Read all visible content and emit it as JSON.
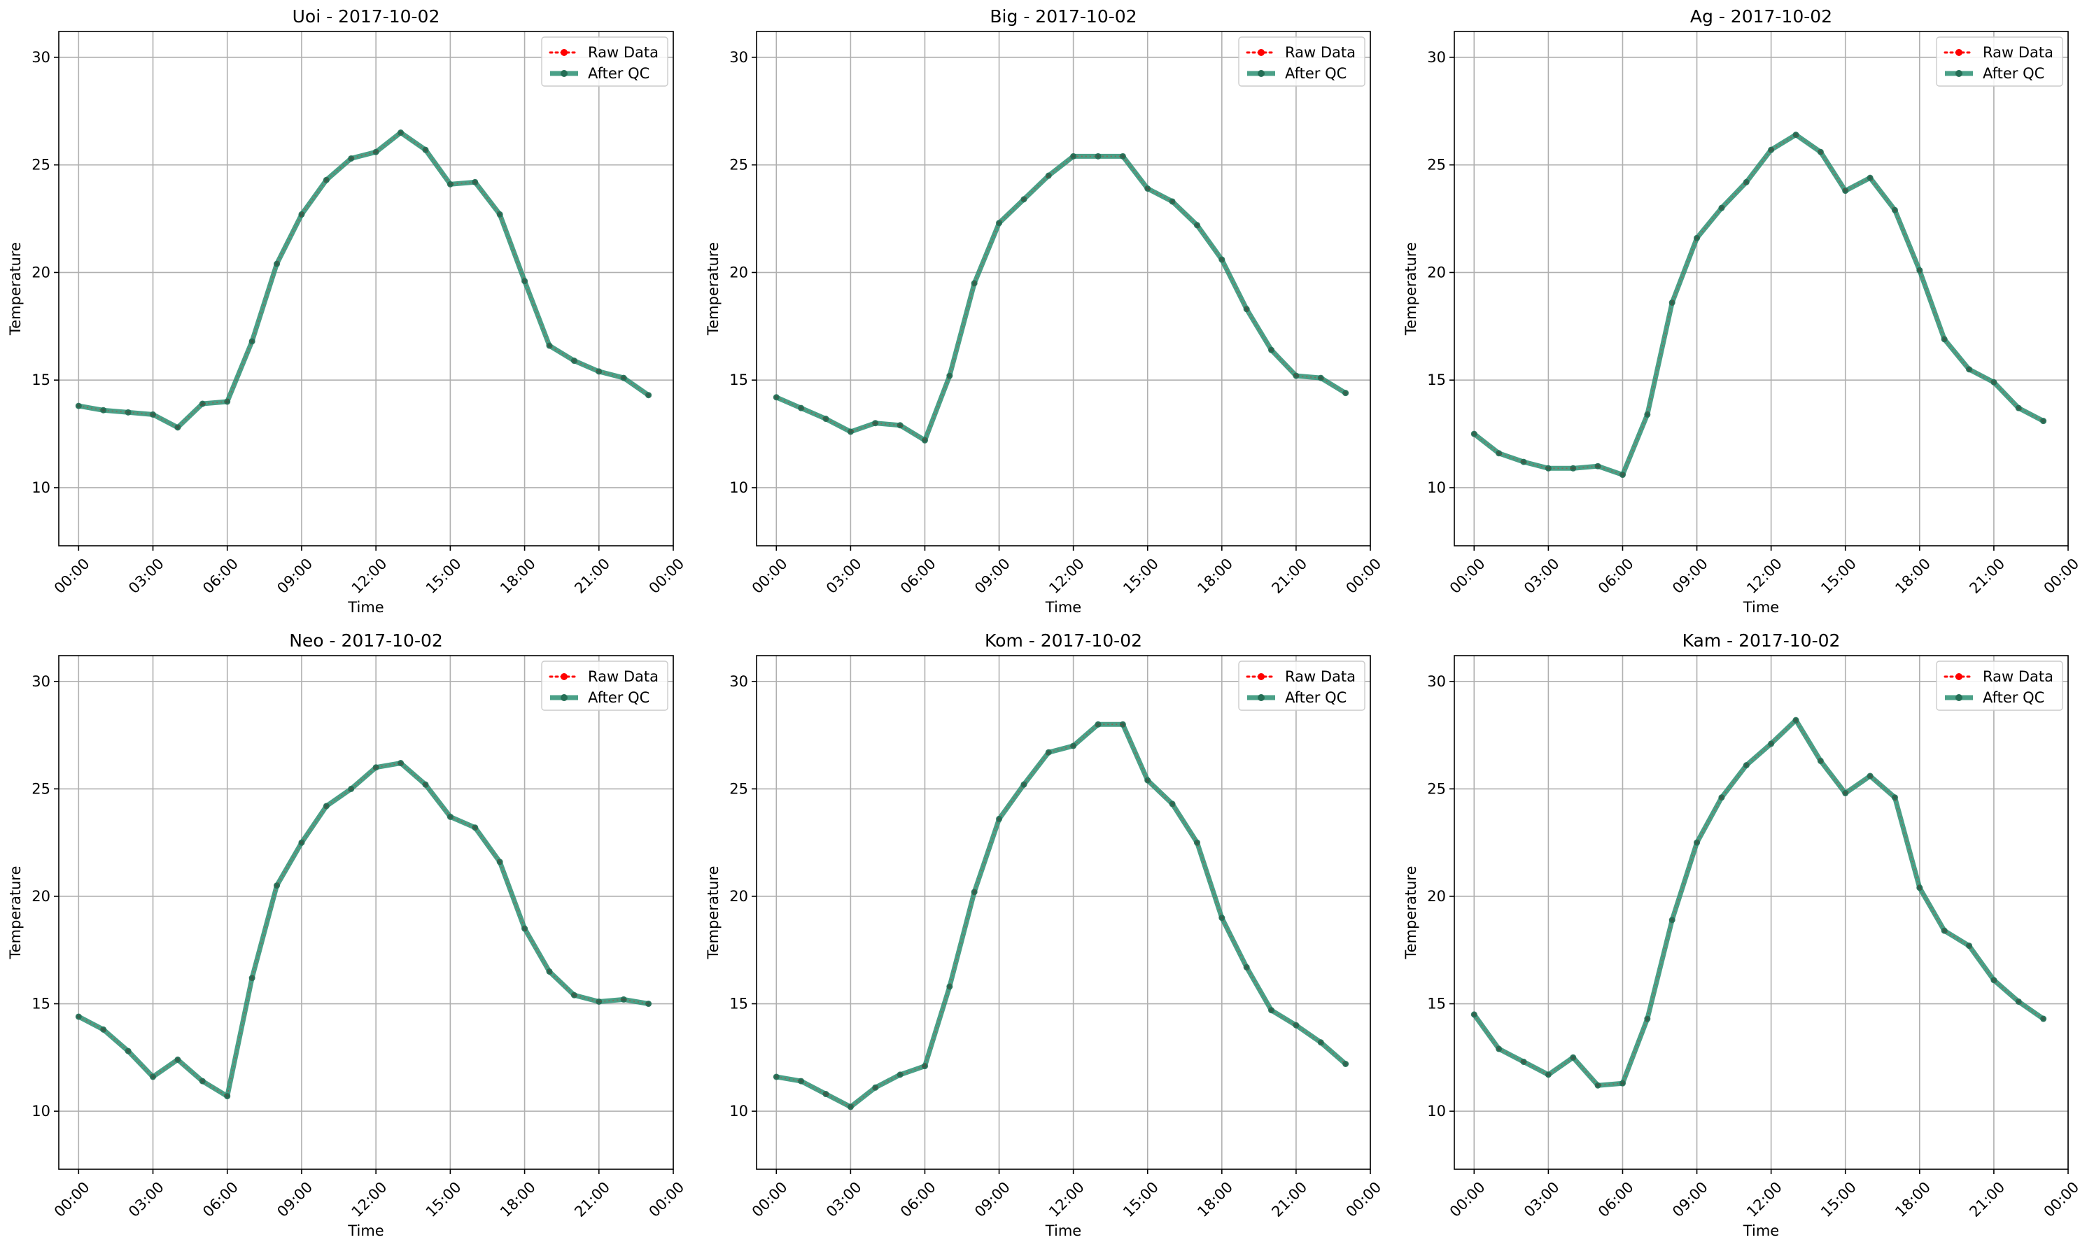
{
  "colors": {
    "raw": "#ff0000",
    "qc": "#2a8f72",
    "qc_marker": "#246e55",
    "grid": "#b0b0b0",
    "axes": "#000000"
  },
  "legend_labels": {
    "raw": "Raw Data",
    "qc": "After QC"
  },
  "chart_data": [
    {
      "type": "line",
      "title": "Uoi - 2017-10-02",
      "xlabel": "Time",
      "ylabel": "Temperature",
      "xlim": [
        -0.8,
        24.0
      ],
      "ylim": [
        7.3,
        31.2
      ],
      "xticks": [
        0,
        3,
        6,
        9,
        12,
        15,
        18,
        21,
        24
      ],
      "xtick_labels": [
        "00:00",
        "03:00",
        "06:00",
        "09:00",
        "12:00",
        "15:00",
        "18:00",
        "21:00",
        "00:00"
      ],
      "yticks": [
        10,
        15,
        20,
        25,
        30
      ],
      "ytick_labels": [
        "10",
        "15",
        "20",
        "25",
        "30"
      ],
      "grid": true,
      "legend": "top-right",
      "x": [
        0,
        1,
        2,
        3,
        4,
        5,
        6,
        7,
        8,
        9,
        10,
        11,
        12,
        13,
        14,
        15,
        16,
        17,
        18,
        19,
        20,
        21,
        22,
        23
      ],
      "series": [
        {
          "name": "Raw Data",
          "values": [
            13.8,
            13.6,
            13.5,
            13.4,
            12.8,
            13.9,
            14.0,
            16.8,
            20.4,
            22.7,
            24.3,
            25.3,
            25.6,
            26.5,
            25.7,
            24.1,
            24.2,
            22.7,
            19.6,
            16.6,
            15.9,
            15.4,
            15.1,
            14.3
          ]
        },
        {
          "name": "After QC",
          "values": [
            13.8,
            13.6,
            13.5,
            13.4,
            12.8,
            13.9,
            14.0,
            16.8,
            20.4,
            22.7,
            24.3,
            25.3,
            25.6,
            26.5,
            25.7,
            24.1,
            24.2,
            22.7,
            19.6,
            16.6,
            15.9,
            15.4,
            15.1,
            14.3
          ]
        }
      ]
    },
    {
      "type": "line",
      "title": "Big - 2017-10-02",
      "xlabel": "Time",
      "ylabel": "Temperature",
      "xlim": [
        -0.8,
        24.0
      ],
      "ylim": [
        7.3,
        31.2
      ],
      "xticks": [
        0,
        3,
        6,
        9,
        12,
        15,
        18,
        21,
        24
      ],
      "xtick_labels": [
        "00:00",
        "03:00",
        "06:00",
        "09:00",
        "12:00",
        "15:00",
        "18:00",
        "21:00",
        "00:00"
      ],
      "yticks": [
        10,
        15,
        20,
        25,
        30
      ],
      "ytick_labels": [
        "10",
        "15",
        "20",
        "25",
        "30"
      ],
      "grid": true,
      "legend": "top-right",
      "x": [
        0,
        1,
        2,
        3,
        4,
        5,
        6,
        7,
        8,
        9,
        10,
        11,
        12,
        13,
        14,
        15,
        16,
        17,
        18,
        19,
        20,
        21,
        22,
        23
      ],
      "series": [
        {
          "name": "Raw Data",
          "values": [
            14.2,
            13.7,
            13.2,
            12.6,
            13.0,
            12.9,
            12.2,
            15.2,
            19.5,
            22.3,
            23.4,
            24.5,
            25.4,
            25.4,
            25.4,
            23.9,
            23.3,
            22.2,
            20.6,
            18.3,
            16.4,
            15.2,
            15.1,
            14.4
          ]
        },
        {
          "name": "After QC",
          "values": [
            14.2,
            13.7,
            13.2,
            12.6,
            13.0,
            12.9,
            12.2,
            15.2,
            19.5,
            22.3,
            23.4,
            24.5,
            25.4,
            25.4,
            25.4,
            23.9,
            23.3,
            22.2,
            20.6,
            18.3,
            16.4,
            15.2,
            15.1,
            14.4
          ]
        }
      ]
    },
    {
      "type": "line",
      "title": "Ag - 2017-10-02",
      "xlabel": "Time",
      "ylabel": "Temperature",
      "xlim": [
        -0.8,
        24.0
      ],
      "ylim": [
        7.3,
        31.2
      ],
      "xticks": [
        0,
        3,
        6,
        9,
        12,
        15,
        18,
        21,
        24
      ],
      "xtick_labels": [
        "00:00",
        "03:00",
        "06:00",
        "09:00",
        "12:00",
        "15:00",
        "18:00",
        "21:00",
        "00:00"
      ],
      "yticks": [
        10,
        15,
        20,
        25,
        30
      ],
      "ytick_labels": [
        "10",
        "15",
        "20",
        "25",
        "30"
      ],
      "grid": true,
      "legend": "top-right",
      "x": [
        0,
        1,
        2,
        3,
        4,
        5,
        6,
        7,
        8,
        9,
        10,
        11,
        12,
        13,
        14,
        15,
        16,
        17,
        18,
        19,
        20,
        21,
        22,
        23
      ],
      "series": [
        {
          "name": "Raw Data",
          "values": [
            12.5,
            11.6,
            11.2,
            10.9,
            10.9,
            11.0,
            10.6,
            13.4,
            18.6,
            21.6,
            23.0,
            24.2,
            25.7,
            26.4,
            25.6,
            23.8,
            24.4,
            22.9,
            20.1,
            16.9,
            15.5,
            14.9,
            13.7,
            13.1
          ]
        },
        {
          "name": "After QC",
          "values": [
            12.5,
            11.6,
            11.2,
            10.9,
            10.9,
            11.0,
            10.6,
            13.4,
            18.6,
            21.6,
            23.0,
            24.2,
            25.7,
            26.4,
            25.6,
            23.8,
            24.4,
            22.9,
            20.1,
            16.9,
            15.5,
            14.9,
            13.7,
            13.1
          ]
        }
      ]
    },
    {
      "type": "line",
      "title": "Neo - 2017-10-02",
      "xlabel": "Time",
      "ylabel": "Temperature",
      "xlim": [
        -0.8,
        24.0
      ],
      "ylim": [
        7.3,
        31.2
      ],
      "xticks": [
        0,
        3,
        6,
        9,
        12,
        15,
        18,
        21,
        24
      ],
      "xtick_labels": [
        "00:00",
        "03:00",
        "06:00",
        "09:00",
        "12:00",
        "15:00",
        "18:00",
        "21:00",
        "00:00"
      ],
      "yticks": [
        10,
        15,
        20,
        25,
        30
      ],
      "ytick_labels": [
        "10",
        "15",
        "20",
        "25",
        "30"
      ],
      "grid": true,
      "legend": "top-right",
      "x": [
        0,
        1,
        2,
        3,
        4,
        5,
        6,
        7,
        8,
        9,
        10,
        11,
        12,
        13,
        14,
        15,
        16,
        17,
        18,
        19,
        20,
        21,
        22,
        23
      ],
      "series": [
        {
          "name": "Raw Data",
          "values": [
            14.4,
            13.8,
            12.8,
            11.6,
            12.4,
            11.4,
            10.7,
            16.2,
            20.5,
            22.5,
            24.2,
            25.0,
            26.0,
            26.2,
            25.2,
            23.7,
            23.2,
            21.6,
            18.5,
            16.5,
            15.4,
            15.1,
            15.2,
            15.0
          ]
        },
        {
          "name": "After QC",
          "values": [
            14.4,
            13.8,
            12.8,
            11.6,
            12.4,
            11.4,
            10.7,
            16.2,
            20.5,
            22.5,
            24.2,
            25.0,
            26.0,
            26.2,
            25.2,
            23.7,
            23.2,
            21.6,
            18.5,
            16.5,
            15.4,
            15.1,
            15.2,
            15.0
          ]
        }
      ]
    },
    {
      "type": "line",
      "title": "Kom - 2017-10-02",
      "xlabel": "Time",
      "ylabel": "Temperature",
      "xlim": [
        -0.8,
        24.0
      ],
      "ylim": [
        7.3,
        31.2
      ],
      "xticks": [
        0,
        3,
        6,
        9,
        12,
        15,
        18,
        21,
        24
      ],
      "xtick_labels": [
        "00:00",
        "03:00",
        "06:00",
        "09:00",
        "12:00",
        "15:00",
        "18:00",
        "21:00",
        "00:00"
      ],
      "yticks": [
        10,
        15,
        20,
        25,
        30
      ],
      "ytick_labels": [
        "10",
        "15",
        "20",
        "25",
        "30"
      ],
      "grid": true,
      "legend": "top-right",
      "x": [
        0,
        1,
        2,
        3,
        4,
        5,
        6,
        7,
        8,
        9,
        10,
        11,
        12,
        13,
        14,
        15,
        16,
        17,
        18,
        19,
        20,
        21,
        22,
        23
      ],
      "series": [
        {
          "name": "Raw Data",
          "values": [
            11.6,
            11.4,
            10.8,
            10.2,
            11.1,
            11.7,
            12.1,
            15.8,
            20.2,
            23.6,
            25.2,
            26.7,
            27.0,
            28.0,
            28.0,
            25.4,
            24.3,
            22.5,
            19.0,
            16.7,
            14.7,
            14.0,
            13.2,
            12.2
          ]
        },
        {
          "name": "After QC",
          "values": [
            11.6,
            11.4,
            10.8,
            10.2,
            11.1,
            11.7,
            12.1,
            15.8,
            20.2,
            23.6,
            25.2,
            26.7,
            27.0,
            28.0,
            28.0,
            25.4,
            24.3,
            22.5,
            19.0,
            16.7,
            14.7,
            14.0,
            13.2,
            12.2
          ]
        }
      ]
    },
    {
      "type": "line",
      "title": "Kam - 2017-10-02",
      "xlabel": "Time",
      "ylabel": "Temperature",
      "xlim": [
        -0.8,
        24.0
      ],
      "ylim": [
        7.3,
        31.2
      ],
      "xticks": [
        0,
        3,
        6,
        9,
        12,
        15,
        18,
        21,
        24
      ],
      "xtick_labels": [
        "00:00",
        "03:00",
        "06:00",
        "09:00",
        "12:00",
        "15:00",
        "18:00",
        "21:00",
        "00:00"
      ],
      "yticks": [
        10,
        15,
        20,
        25,
        30
      ],
      "ytick_labels": [
        "10",
        "15",
        "20",
        "25",
        "30"
      ],
      "grid": true,
      "legend": "top-right",
      "x": [
        0,
        1,
        2,
        3,
        4,
        5,
        6,
        7,
        8,
        9,
        10,
        11,
        12,
        13,
        14,
        15,
        16,
        17,
        18,
        19,
        20,
        21,
        22,
        23
      ],
      "series": [
        {
          "name": "Raw Data",
          "values": [
            14.5,
            12.9,
            12.3,
            11.7,
            12.5,
            11.2,
            11.3,
            14.3,
            18.9,
            22.5,
            24.6,
            26.1,
            27.1,
            28.2,
            26.3,
            24.8,
            25.6,
            24.6,
            20.4,
            18.4,
            17.7,
            16.1,
            15.1,
            14.3
          ]
        },
        {
          "name": "After QC",
          "values": [
            14.5,
            12.9,
            12.3,
            11.7,
            12.5,
            11.2,
            11.3,
            14.3,
            18.9,
            22.5,
            24.6,
            26.1,
            27.1,
            28.2,
            26.3,
            24.8,
            25.6,
            24.6,
            20.4,
            18.4,
            17.7,
            16.1,
            15.1,
            14.3
          ]
        }
      ]
    }
  ]
}
